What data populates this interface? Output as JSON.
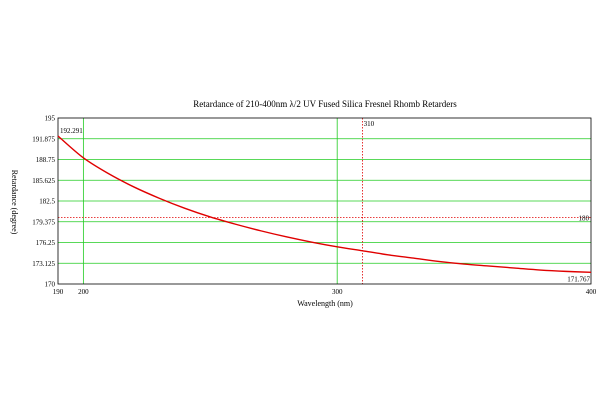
{
  "chart_data": {
    "type": "line",
    "title": "Retardance of 210-400nm λ/2 UV Fused Silica Fresnel Rhomb Retarders",
    "xlabel": "Wavelength (nm)",
    "ylabel": "Retardance (degree)",
    "xlim": [
      190,
      400
    ],
    "ylim": [
      170,
      195
    ],
    "x_ticks": [
      {
        "value": 190,
        "label": "190"
      },
      {
        "value": 200,
        "label": "200"
      },
      {
        "value": 300,
        "label": "300"
      },
      {
        "value": 400,
        "label": "400"
      }
    ],
    "y_ticks": [
      {
        "value": 195,
        "label": "195"
      },
      {
        "value": 191.875,
        "label": "191.875"
      },
      {
        "value": 188.75,
        "label": "188.75"
      },
      {
        "value": 185.625,
        "label": "185.625"
      },
      {
        "value": 182.5,
        "label": "182.5"
      },
      {
        "value": 179.375,
        "label": "179.375"
      },
      {
        "value": 176.25,
        "label": "176.25"
      },
      {
        "value": 173.125,
        "label": "173.125"
      },
      {
        "value": 170,
        "label": "170"
      }
    ],
    "grid": true,
    "series": [
      {
        "color": "#e00000",
        "x": [
          190,
          200,
          210,
          220,
          230,
          240,
          250,
          260,
          270,
          280,
          290,
          300,
          310,
          320,
          330,
          340,
          350,
          360,
          370,
          380,
          390,
          400
        ],
        "y": [
          192.291,
          189.0,
          186.6,
          184.6,
          182.9,
          181.4,
          180.1,
          179.0,
          178.0,
          177.1,
          176.3,
          175.6,
          175.0,
          174.4,
          173.9,
          173.4,
          173.0,
          172.7,
          172.4,
          172.1,
          171.9,
          171.767
        ]
      }
    ],
    "markers": {
      "vertical": {
        "value": 310,
        "label": "310",
        "color": "#e00000"
      },
      "horizontal": {
        "value": 180,
        "label": "180",
        "color": "#e00000"
      }
    },
    "annotations": [
      {
        "text": "192.291"
      },
      {
        "text": "171.767"
      }
    ]
  }
}
